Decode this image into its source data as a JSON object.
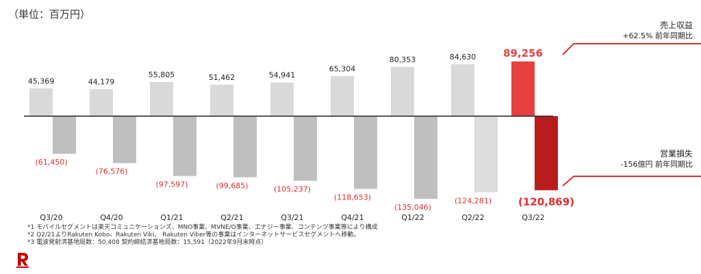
{
  "unit_label": "（単位：百万円）",
  "callouts": {
    "revenue": {
      "title": "売上収益",
      "sub": "+62.5% 前年同期比",
      "color": "#e32b2b"
    },
    "op_loss": {
      "title": "営業損失",
      "sub": "-156億円 前年同期比",
      "color": "#e32b2b"
    }
  },
  "notes": [
    "*1 モバイルセグメントは楽天コミュニケーションズ、MNO事業、MVNE/O事業、エナジー事業、コンテンツ事業等により構成",
    "*2 Q2/21よりRakuten Kobo、Rakuten Viki、 Rakuten Viber等の事業はインターネットサービスセグメントへ移動。",
    "*3 電波発射済基地局数：50,408 契約締結済基地局数：15,591（2022年9月末時点）"
  ],
  "logo_icon": "rakuten-r-logo-icon",
  "chart_data": {
    "type": "bar",
    "categories": [
      "Q3/20",
      "Q4/20",
      "Q1/21",
      "Q2/21",
      "Q3/21",
      "Q4/21",
      "Q1/22",
      "Q2/22",
      "Q3/22"
    ],
    "series": [
      {
        "values": [
          45369,
          44179,
          55805,
          51462,
          54941,
          65304,
          80353,
          84630,
          89256
        ],
        "labels": [
          "45,369",
          "44,179",
          "55,805",
          "51,462",
          "54,941",
          "65,304",
          "80,353",
          "84,630",
          "89,256"
        ],
        "color": "#d9d9d9",
        "highlight_color": "#e84040"
      },
      {
        "values": [
          -61450,
          -76576,
          -97597,
          -99685,
          -105237,
          -118653,
          -135046,
          -124281,
          -120869
        ],
        "labels": [
          "(61,450)",
          "(76,576)",
          "(97,597)",
          "(99,685)",
          "(105,237)",
          "(118,653)",
          "(135,046)",
          "(124,281)",
          "(120,869)"
        ],
        "color": "#bfbfbf",
        "alt_color": "#dcdcdc",
        "highlight_color": "#b81c1c"
      }
    ],
    "highlight_index": 8,
    "label_color_negative": "#e32b2b"
  }
}
